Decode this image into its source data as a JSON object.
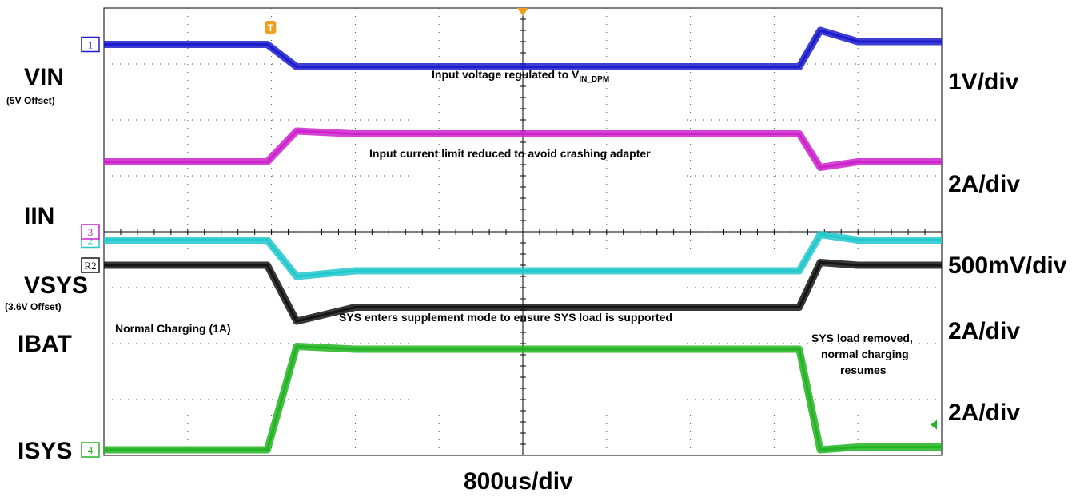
{
  "chart_data": {
    "type": "line",
    "title": "",
    "xlabel": "800us/div",
    "ylabel": "",
    "grid": true,
    "x_divisions": 10,
    "y_divisions": 8,
    "x": [
      0,
      1.95,
      2.3,
      3.0,
      8.3,
      8.55,
      9.0,
      10
    ],
    "series": [
      {
        "name": "VIN",
        "sub": "IN",
        "note": "(5V Offset)",
        "scale": "1V/div",
        "marker": "1",
        "color": "#1c1ccc",
        "values": [
          7.35,
          7.35,
          6.95,
          6.95,
          6.95,
          7.6,
          7.4,
          7.4
        ]
      },
      {
        "name": "IIN",
        "sub": "IN",
        "note": "",
        "scale": "2A/div",
        "marker": "",
        "color": "#cc22cc",
        "values": [
          5.25,
          5.25,
          5.8,
          5.75,
          5.75,
          5.15,
          5.25,
          5.25
        ]
      },
      {
        "name": "VSYS",
        "sub": "SYS",
        "note": "(3.6V Offset)",
        "scale": "500mV/div",
        "marker": "2",
        "color": "#22c8cc",
        "values": [
          3.85,
          3.85,
          3.2,
          3.3,
          3.3,
          3.95,
          3.85,
          3.85
        ]
      },
      {
        "name": "IBAT",
        "sub": "BAT",
        "note": "",
        "scale": "2A/div",
        "marker": "R2",
        "color": "#141414",
        "values": [
          3.4,
          3.4,
          2.4,
          2.65,
          2.65,
          3.45,
          3.4,
          3.4
        ]
      },
      {
        "name": "ISYS",
        "sub": "SYS",
        "note": "",
        "scale": "2A/div",
        "marker": "4",
        "color": "#22b422",
        "values": [
          0.1,
          0.1,
          1.95,
          1.9,
          1.9,
          0.1,
          0.15,
          0.15
        ]
      }
    ],
    "annotations": [
      {
        "text": "Input voltage regulated to V",
        "sub": "IN_DPM"
      },
      {
        "text": "Input current limit reduced to avoid crashing adapter",
        "sub": ""
      },
      {
        "text": "SYS enters supplement mode to ensure SYS load is supported",
        "sub": ""
      },
      {
        "text": "Normal Charging (1A)",
        "sub": ""
      },
      {
        "text": "SYS load removed,",
        "sub": ""
      },
      {
        "text": "normal charging",
        "sub": ""
      },
      {
        "text": "resumes",
        "sub": ""
      }
    ],
    "extra_markers": [
      "3"
    ],
    "trigger_marker": "T"
  }
}
